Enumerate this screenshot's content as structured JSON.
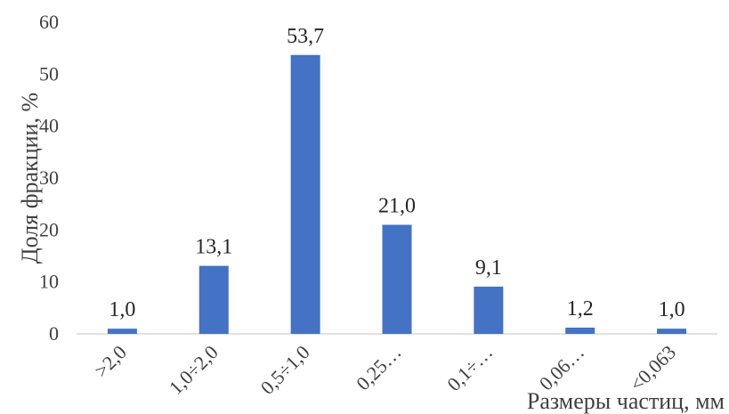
{
  "chart_data": {
    "type": "bar",
    "categories": [
      ">2,0",
      "1,0÷2,0",
      "0,5÷1,0",
      "0,25…",
      "0,1÷…",
      "0,06…",
      "<0,063"
    ],
    "values": [
      1.0,
      13.1,
      53.7,
      21.0,
      9.1,
      1.2,
      1.0
    ],
    "data_labels": [
      "1,0",
      "13,1",
      "53,7",
      "21,0",
      "9,1",
      "1,2",
      "1,0"
    ],
    "y_ticks": [
      "0",
      "10",
      "20",
      "30",
      "40",
      "50",
      "60"
    ],
    "ylim": [
      0,
      60
    ],
    "xlabel": "Размеры частиц, мм",
    "ylabel": "Доля фракции, %",
    "grid": false,
    "legend": "none",
    "bar_color": "#4472c4",
    "axis_color": "#d9d9d9"
  }
}
